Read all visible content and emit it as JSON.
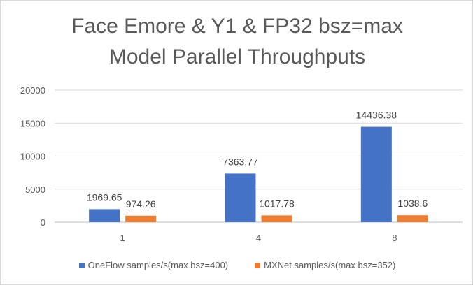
{
  "colors": {
    "oneflow": "#4472c4",
    "mxnet": "#ed7d31",
    "grid": "#d9d9d9",
    "text": "#595959",
    "label": "#404040"
  },
  "chart_data": {
    "type": "bar",
    "title_lines": [
      "Face Emore & Y1 & FP32 bsz=max",
      "Model Parallel Throughputs"
    ],
    "xlabel": "",
    "ylabel": "",
    "categories": [
      "1",
      "4",
      "8"
    ],
    "ylim": [
      0,
      20000
    ],
    "yticks": [
      0,
      5000,
      10000,
      15000,
      20000
    ],
    "grid": true,
    "legend_position": "bottom",
    "series": [
      {
        "name": "OneFlow samples/s(max bsz=400)",
        "values": [
          1969.65,
          7363.77,
          14436.38
        ],
        "labels": [
          "1969.65",
          "7363.77",
          "14436.38"
        ]
      },
      {
        "name": "MXNet samples/s(max bsz=352)",
        "values": [
          974.26,
          1017.78,
          1038.6
        ],
        "labels": [
          "974.26",
          "1017.78",
          "1038.6"
        ]
      }
    ]
  }
}
